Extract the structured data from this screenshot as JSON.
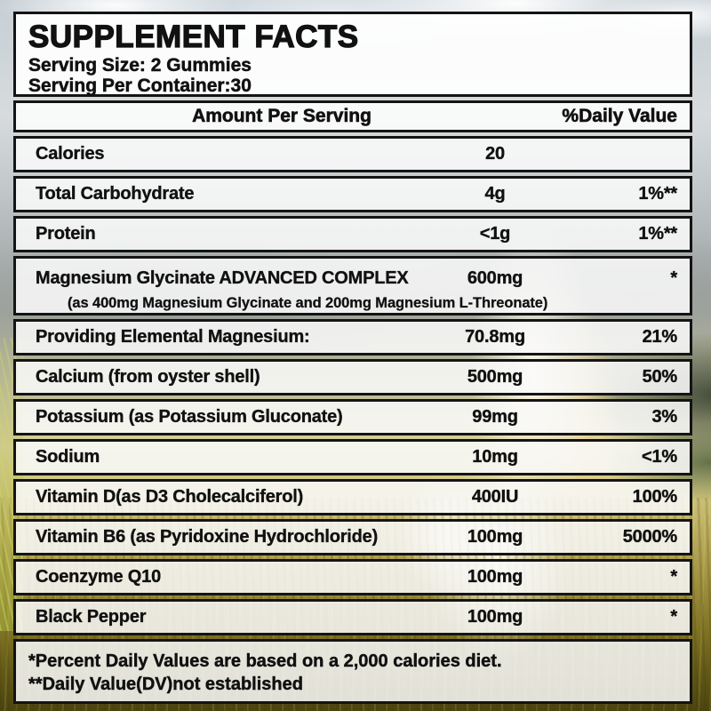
{
  "label": {
    "title": "SUPPLEMENT FACTS",
    "serving_size": "Serving Size: 2 Gummies",
    "servings_per_container": "Serving Per Container:30",
    "header": {
      "amount": "Amount Per Serving",
      "daily_value": "%Daily Value"
    },
    "rows": [
      {
        "name": "Calories",
        "amount": "20",
        "dv": ""
      },
      {
        "name": "Total Carbohydrate",
        "amount": "4g",
        "dv": "1%**"
      },
      {
        "name": "Protein",
        "amount": "<1g",
        "dv": "1%**"
      },
      {
        "name": "Magnesium Glycinate ADVANCED COMPLEX",
        "amount": "600mg",
        "dv": "*",
        "sub": "(as 400mg Magnesium Glycinate and 200mg Magnesium L-Threonate)"
      },
      {
        "name": "Providing Elemental Magnesium:",
        "amount": "70.8mg",
        "dv": "21%"
      },
      {
        "name": "Calcium (from oyster shell)",
        "amount": "500mg",
        "dv": "50%"
      },
      {
        "name": "Potassium (as Potassium Gluconate)",
        "amount": "99mg",
        "dv": "3%"
      },
      {
        "name": "Sodium",
        "amount": "10mg",
        "dv": "<1%"
      },
      {
        "name": "Vitamin D(as D3 Cholecalciferol)",
        "amount": "400IU",
        "dv": "100%"
      },
      {
        "name": "Vitamin B6 (as Pyridoxine Hydrochloride)",
        "amount": "100mg",
        "dv": "5000%"
      },
      {
        "name": "Coenzyme Q10",
        "amount": "100mg",
        "dv": "*"
      },
      {
        "name": "Black Pepper",
        "amount": "100mg",
        "dv": "*"
      }
    ],
    "footnotes": [
      "*Percent Daily Values are based on a 2,000 calories diet.",
      "**Daily Value(DV)not established"
    ],
    "colors": {
      "border_black": "#141414",
      "panel_white": "#fafafa",
      "text_black": "#111111",
      "sky": "#c6cfd6",
      "grass_gold": "#9f9040"
    }
  }
}
